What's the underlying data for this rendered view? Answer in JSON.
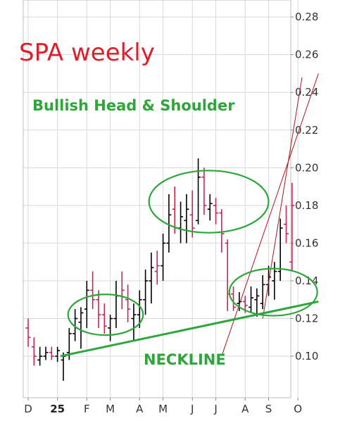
{
  "colors": {
    "up": "#000000",
    "down": "#c8244f",
    "annotation": "#2ea63c",
    "title": "#e01e2a",
    "channel": "#b0141e",
    "grid": "#d9d9d9"
  },
  "chart_data": {
    "type": "ohlc",
    "title": "SPA weekly",
    "subtitle": "Bullish Head & Shoulder",
    "neckline_label": "NECKLINE",
    "yticks": [
      "0.10",
      "0.12",
      "0.14",
      "0.16",
      "0.18",
      "0.20",
      "0.22",
      "0.24",
      "0.26",
      "0.28"
    ],
    "ylim": [
      0.078,
      0.289
    ],
    "xtick_labels": [
      {
        "label": "D",
        "bar": 0,
        "bold": false
      },
      {
        "label": "25",
        "bar": 5,
        "bold": true
      },
      {
        "label": "F",
        "bar": 10,
        "bold": false
      },
      {
        "label": "M",
        "bar": 14,
        "bold": false
      },
      {
        "label": "A",
        "bar": 19,
        "bold": false
      },
      {
        "label": "M",
        "bar": 23,
        "bold": false
      },
      {
        "label": "J",
        "bar": 28,
        "bold": false
      },
      {
        "label": "J",
        "bar": 32,
        "bold": false
      },
      {
        "label": "A",
        "bar": 37,
        "bold": false
      },
      {
        "label": "S",
        "bar": 41,
        "bold": false
      },
      {
        "label": "O",
        "bar": 46,
        "bold": false
      }
    ],
    "bars": [
      {
        "o": 0.115,
        "h": 0.12,
        "l": 0.105,
        "c": 0.11,
        "dir": "down"
      },
      {
        "o": 0.105,
        "h": 0.11,
        "l": 0.095,
        "c": 0.1,
        "dir": "down"
      },
      {
        "o": 0.098,
        "h": 0.105,
        "l": 0.095,
        "c": 0.1,
        "dir": "up"
      },
      {
        "o": 0.1,
        "h": 0.105,
        "l": 0.098,
        "c": 0.102,
        "dir": "up"
      },
      {
        "o": 0.102,
        "h": 0.105,
        "l": 0.098,
        "c": 0.1,
        "dir": "down"
      },
      {
        "o": 0.1,
        "h": 0.105,
        "l": 0.097,
        "c": 0.103,
        "dir": "up"
      },
      {
        "o": 0.098,
        "h": 0.102,
        "l": 0.087,
        "c": 0.1,
        "dir": "up"
      },
      {
        "o": 0.102,
        "h": 0.115,
        "l": 0.098,
        "c": 0.112,
        "dir": "up"
      },
      {
        "o": 0.112,
        "h": 0.125,
        "l": 0.108,
        "c": 0.12,
        "dir": "up"
      },
      {
        "o": 0.118,
        "h": 0.126,
        "l": 0.104,
        "c": 0.123,
        "dir": "up"
      },
      {
        "o": 0.125,
        "h": 0.14,
        "l": 0.115,
        "c": 0.135,
        "dir": "up"
      },
      {
        "o": 0.135,
        "h": 0.145,
        "l": 0.125,
        "c": 0.13,
        "dir": "down"
      },
      {
        "o": 0.13,
        "h": 0.135,
        "l": 0.115,
        "c": 0.122,
        "dir": "down"
      },
      {
        "o": 0.122,
        "h": 0.128,
        "l": 0.112,
        "c": 0.116,
        "dir": "down"
      },
      {
        "o": 0.115,
        "h": 0.122,
        "l": 0.108,
        "c": 0.12,
        "dir": "up"
      },
      {
        "o": 0.12,
        "h": 0.14,
        "l": 0.115,
        "c": 0.132,
        "dir": "up"
      },
      {
        "o": 0.132,
        "h": 0.145,
        "l": 0.125,
        "c": 0.135,
        "dir": "down"
      },
      {
        "o": 0.13,
        "h": 0.138,
        "l": 0.118,
        "c": 0.125,
        "dir": "down"
      },
      {
        "o": 0.12,
        "h": 0.128,
        "l": 0.108,
        "c": 0.122,
        "dir": "up"
      },
      {
        "o": 0.122,
        "h": 0.135,
        "l": 0.115,
        "c": 0.13,
        "dir": "up"
      },
      {
        "o": 0.13,
        "h": 0.146,
        "l": 0.122,
        "c": 0.14,
        "dir": "up"
      },
      {
        "o": 0.14,
        "h": 0.155,
        "l": 0.128,
        "c": 0.147,
        "dir": "up"
      },
      {
        "o": 0.145,
        "h": 0.156,
        "l": 0.138,
        "c": 0.148,
        "dir": "down"
      },
      {
        "o": 0.148,
        "h": 0.165,
        "l": 0.14,
        "c": 0.16,
        "dir": "up"
      },
      {
        "o": 0.16,
        "h": 0.186,
        "l": 0.155,
        "c": 0.175,
        "dir": "up"
      },
      {
        "o": 0.178,
        "h": 0.19,
        "l": 0.165,
        "c": 0.168,
        "dir": "down"
      },
      {
        "o": 0.168,
        "h": 0.182,
        "l": 0.16,
        "c": 0.174,
        "dir": "up"
      },
      {
        "o": 0.172,
        "h": 0.186,
        "l": 0.16,
        "c": 0.178,
        "dir": "up"
      },
      {
        "o": 0.175,
        "h": 0.188,
        "l": 0.163,
        "c": 0.168,
        "dir": "down"
      },
      {
        "o": 0.172,
        "h": 0.205,
        "l": 0.17,
        "c": 0.195,
        "dir": "up"
      },
      {
        "o": 0.195,
        "h": 0.2,
        "l": 0.175,
        "c": 0.18,
        "dir": "down"
      },
      {
        "o": 0.178,
        "h": 0.186,
        "l": 0.172,
        "c": 0.181,
        "dir": "up"
      },
      {
        "o": 0.18,
        "h": 0.184,
        "l": 0.17,
        "c": 0.176,
        "dir": "down"
      },
      {
        "o": 0.176,
        "h": 0.178,
        "l": 0.155,
        "c": 0.165,
        "dir": "down"
      },
      {
        "o": 0.16,
        "h": 0.162,
        "l": 0.124,
        "c": 0.133,
        "dir": "down"
      },
      {
        "o": 0.133,
        "h": 0.137,
        "l": 0.124,
        "c": 0.126,
        "dir": "down"
      },
      {
        "o": 0.128,
        "h": 0.134,
        "l": 0.124,
        "c": 0.129,
        "dir": "up"
      },
      {
        "o": 0.129,
        "h": 0.132,
        "l": 0.123,
        "c": 0.127,
        "dir": "down"
      },
      {
        "o": 0.126,
        "h": 0.137,
        "l": 0.123,
        "c": 0.131,
        "dir": "up"
      },
      {
        "o": 0.13,
        "h": 0.136,
        "l": 0.121,
        "c": 0.132,
        "dir": "up"
      },
      {
        "o": 0.128,
        "h": 0.143,
        "l": 0.125,
        "c": 0.138,
        "dir": "up"
      },
      {
        "o": 0.138,
        "h": 0.148,
        "l": 0.132,
        "c": 0.142,
        "dir": "up"
      },
      {
        "o": 0.14,
        "h": 0.15,
        "l": 0.13,
        "c": 0.145,
        "dir": "up"
      },
      {
        "o": 0.145,
        "h": 0.173,
        "l": 0.14,
        "c": 0.168,
        "dir": "up"
      },
      {
        "o": 0.17,
        "h": 0.18,
        "l": 0.16,
        "c": 0.165,
        "dir": "down"
      },
      {
        "o": 0.15,
        "h": 0.192,
        "l": 0.145,
        "c": 0.18,
        "dir": "down"
      }
    ],
    "neckline": [
      {
        "bar": 5.5,
        "y": 0.1
      },
      {
        "bar": 49.5,
        "y": 0.129
      }
    ],
    "channel_lines": [
      [
        {
          "bar": 40,
          "y": 0.12
        },
        {
          "bar": 46.7,
          "y": 0.248
        }
      ],
      [
        {
          "bar": 33.1,
          "y": 0.101
        },
        {
          "bar": 49.5,
          "y": 0.25
        }
      ]
    ],
    "ellipses": [
      {
        "name": "left-shoulder",
        "bar_center": 13.2,
        "y_center": 0.122,
        "bar_radius": 6.4,
        "y_radius": 0.0108
      },
      {
        "name": "head",
        "bar_center": 30.8,
        "y_center": 0.182,
        "bar_radius": 10.2,
        "y_radius": 0.0165
      },
      {
        "name": "right-shoulder",
        "bar_center": 41.8,
        "y_center": 0.134,
        "bar_radius": 7.5,
        "y_radius": 0.0125
      }
    ]
  }
}
